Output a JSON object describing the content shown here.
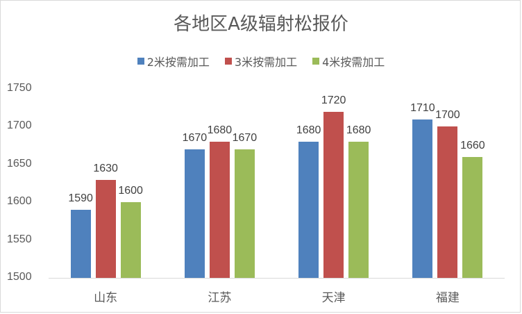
{
  "chart_data": {
    "type": "bar",
    "title": "各地区A级辐射松报价",
    "xlabel": "",
    "ylabel": "",
    "categories": [
      "山东",
      "江苏",
      "天津",
      "福建"
    ],
    "series": [
      {
        "name": "2米按需加工",
        "color": "#4f81bd",
        "values": [
          1590,
          1670,
          1680,
          1710
        ]
      },
      {
        "name": "3米按需加工",
        "color": "#c0504d",
        "values": [
          1630,
          1680,
          1720,
          1700
        ]
      },
      {
        "name": "4米按需加工",
        "color": "#9bbb59",
        "values": [
          1600,
          1670,
          1680,
          1660
        ]
      }
    ],
    "ylim": [
      1500,
      1750
    ],
    "yticks": [
      1500,
      1550,
      1600,
      1650,
      1700,
      1750
    ],
    "grid": false,
    "legend_position": "top",
    "data_labels": true
  }
}
